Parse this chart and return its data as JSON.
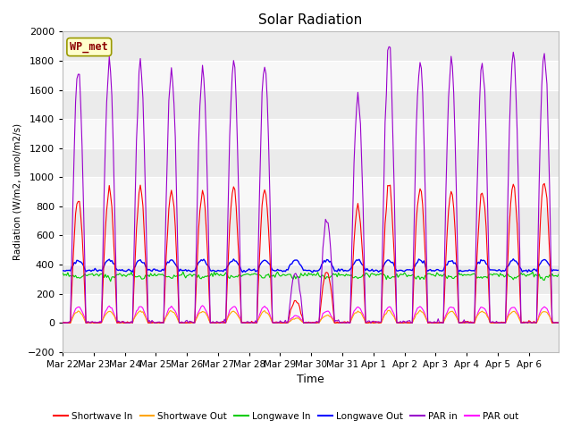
{
  "title": "Solar Radiation",
  "ylabel": "Radiation (W/m2, umol/m2/s)",
  "xlabel": "Time",
  "ylim": [
    -200,
    2000
  ],
  "yticks": [
    -200,
    0,
    200,
    400,
    600,
    800,
    1000,
    1200,
    1400,
    1600,
    1800,
    2000
  ],
  "station_label": "WP_met",
  "legend_entries": [
    {
      "label": "Shortwave In",
      "color": "#ff0000"
    },
    {
      "label": "Shortwave Out",
      "color": "#ffa500"
    },
    {
      "label": "Longwave In",
      "color": "#00cc00"
    },
    {
      "label": "Longwave Out",
      "color": "#0000ff"
    },
    {
      "label": "PAR in",
      "color": "#9900cc"
    },
    {
      "label": "PAR out",
      "color": "#ff00ff"
    }
  ],
  "background_color": "#ffffff",
  "plot_bg_color": "#ffffff",
  "grid_color": "#ffffff",
  "sw_peaks": [
    850,
    900,
    900,
    900,
    900,
    920,
    900,
    150,
    350,
    800,
    950,
    930,
    900,
    900,
    950,
    970
  ],
  "par_peaks": [
    1730,
    1760,
    1730,
    1720,
    1750,
    1760,
    1750,
    350,
    700,
    1550,
    1900,
    1800,
    1800,
    1800,
    1850,
    1860
  ],
  "par_out_peaks": [
    110,
    110,
    110,
    110,
    110,
    110,
    110,
    50,
    80,
    110,
    110,
    110,
    110,
    110,
    110,
    110
  ],
  "sw_out_peaks": [
    80,
    80,
    80,
    80,
    80,
    80,
    80,
    30,
    50,
    80,
    80,
    80,
    80,
    80,
    80,
    80
  ],
  "lw_in_base": 330,
  "lw_out_base": 360,
  "cloudy_days": [
    7
  ]
}
